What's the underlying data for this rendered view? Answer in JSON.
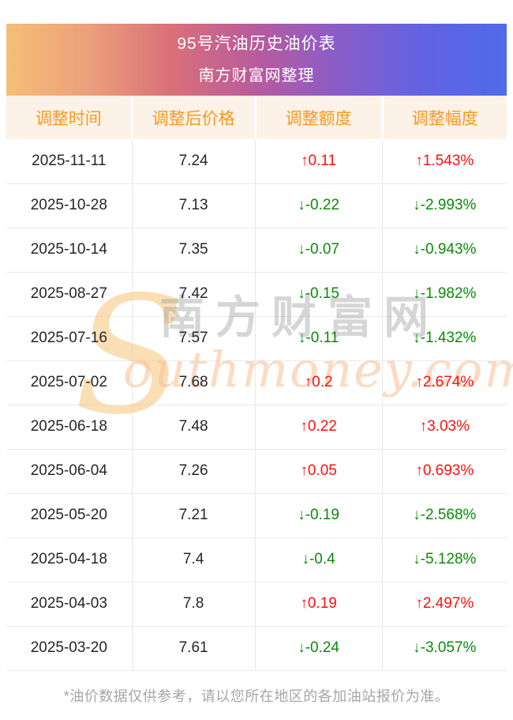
{
  "banner": {
    "title": "95号汽油历史油价表",
    "subtitle": "南方财富网整理"
  },
  "table": {
    "columns": [
      "调整时间",
      "调整后价格",
      "调整额度",
      "调整幅度"
    ],
    "rows": [
      {
        "date": "2025-11-11",
        "price": "7.24",
        "change": "↑0.11",
        "percent": "↑1.543%",
        "direction": "up"
      },
      {
        "date": "2025-10-28",
        "price": "7.13",
        "change": "↓-0.22",
        "percent": "↓-2.993%",
        "direction": "down"
      },
      {
        "date": "2025-10-14",
        "price": "7.35",
        "change": "↓-0.07",
        "percent": "↓-0.943%",
        "direction": "down"
      },
      {
        "date": "2025-08-27",
        "price": "7.42",
        "change": "↓-0.15",
        "percent": "↓-1.982%",
        "direction": "down"
      },
      {
        "date": "2025-07-16",
        "price": "7.57",
        "change": "↓-0.11",
        "percent": "↓-1.432%",
        "direction": "down"
      },
      {
        "date": "2025-07-02",
        "price": "7.68",
        "change": "↑0.2",
        "percent": "↑2.674%",
        "direction": "up"
      },
      {
        "date": "2025-06-18",
        "price": "7.48",
        "change": "↑0.22",
        "percent": "↑3.03%",
        "direction": "up"
      },
      {
        "date": "2025-06-04",
        "price": "7.26",
        "change": "↑0.05",
        "percent": "↑0.693%",
        "direction": "up"
      },
      {
        "date": "2025-05-20",
        "price": "7.21",
        "change": "↓-0.19",
        "percent": "↓-2.568%",
        "direction": "down"
      },
      {
        "date": "2025-04-18",
        "price": "7.4",
        "change": "↓-0.4",
        "percent": "↓-5.128%",
        "direction": "down"
      },
      {
        "date": "2025-04-03",
        "price": "7.8",
        "change": "↑0.19",
        "percent": "↑2.497%",
        "direction": "up"
      },
      {
        "date": "2025-03-20",
        "price": "7.61",
        "change": "↓-0.24",
        "percent": "↓-3.057%",
        "direction": "down"
      }
    ]
  },
  "watermark": {
    "initial": "S",
    "cn_text": "南方财富网",
    "en_text": "outhmoney.com"
  },
  "footnote": "*油价数据仅供参考，请以您所在地区的各加油站报价为准。",
  "colors": {
    "up": "#fe1010",
    "down": "#0a8a0a",
    "header_text": "#f59a23",
    "header_bg": "#fdf2e7",
    "banner_gradient_start": "#f5bf77",
    "banner_gradient_end": "#4f6ae9"
  }
}
